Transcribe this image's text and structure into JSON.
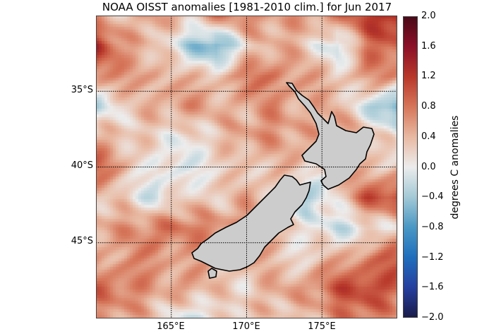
{
  "chart_data": {
    "type": "heatmap",
    "title": "NOAA OISST anomalies [1981-2010 clim.] for Jun 2017",
    "colorbar_label": "degrees C anomalies",
    "vlim": [
      -2.0,
      2.0
    ],
    "colorbar_ticks": [
      "2.0",
      "1.6",
      "1.2",
      "0.8",
      "0.4",
      "0.0",
      "−0.4",
      "−0.8",
      "−1.2",
      "−1.6",
      "−2.0"
    ],
    "lon_range": [
      160,
      180
    ],
    "lat_range": [
      -30,
      -50
    ],
    "x_ticks": [
      {
        "value": 165,
        "label": "165°E"
      },
      {
        "value": 170,
        "label": "170°E"
      },
      {
        "value": 175,
        "label": "175°E"
      }
    ],
    "y_ticks": [
      {
        "value": -35,
        "label": "35°S"
      },
      {
        "value": -40,
        "label": "40°S"
      },
      {
        "value": -45,
        "label": "45°S"
      }
    ],
    "grid_step_deg": 2,
    "grid_lons": [
      160,
      162,
      164,
      166,
      168,
      170,
      172,
      174,
      176,
      178,
      180
    ],
    "grid_lats": [
      -30,
      -32,
      -34,
      -36,
      -38,
      -40,
      -42,
      -44,
      -46,
      -48,
      -50
    ],
    "values": [
      [
        0.5,
        0.3,
        0.6,
        0.3,
        0.7,
        0.8,
        0.5,
        0.6,
        0.7,
        1.2,
        1.4
      ],
      [
        1.3,
        0.6,
        0.3,
        -0.3,
        -0.8,
        0.2,
        0.5,
        0.3,
        -0.3,
        0.8,
        1.0
      ],
      [
        0.8,
        0.5,
        0.6,
        0.3,
        0.4,
        0.7,
        0.8,
        0.5,
        0.3,
        0.6,
        0.6
      ],
      [
        -0.3,
        0.2,
        0.5,
        0.6,
        0.5,
        0.4,
        0.7,
        0.4,
        0.5,
        -0.2,
        -0.8
      ],
      [
        0.5,
        0.3,
        0.2,
        0.0,
        0.3,
        0.6,
        0.6,
        0.5,
        0.6,
        0.5,
        0.0
      ],
      [
        0.9,
        0.5,
        -0.1,
        0.0,
        0.1,
        0.3,
        0.4,
        0.2,
        0.3,
        0.3,
        0.4
      ],
      [
        0.3,
        0.2,
        -0.2,
        0.3,
        0.2,
        0.5,
        0.3,
        -0.4,
        0.2,
        1.0,
        1.2
      ],
      [
        0.5,
        0.6,
        0.8,
        0.8,
        0.7,
        0.6,
        0.4,
        0.1,
        -0.2,
        0.0,
        0.2
      ],
      [
        0.6,
        0.5,
        0.7,
        0.5,
        0.4,
        0.5,
        0.3,
        0.2,
        0.4,
        0.8,
        0.9
      ],
      [
        0.9,
        0.8,
        0.5,
        0.6,
        0.3,
        0.2,
        0.5,
        0.6,
        1.0,
        1.2,
        0.9
      ],
      [
        0.5,
        0.6,
        0.3,
        -0.2,
        0.1,
        0.4,
        0.3,
        0.3,
        0.7,
        0.8,
        0.6
      ]
    ],
    "colormap": [
      "#1a1c4a",
      "#2540a0",
      "#1f6fbd",
      "#4a98c4",
      "#a3c9d6",
      "#ececec",
      "#e8b9a2",
      "#d6765a",
      "#b8382a",
      "#8c1028",
      "#4a0a18"
    ],
    "land_color": "#cccccc",
    "grid": true
  }
}
